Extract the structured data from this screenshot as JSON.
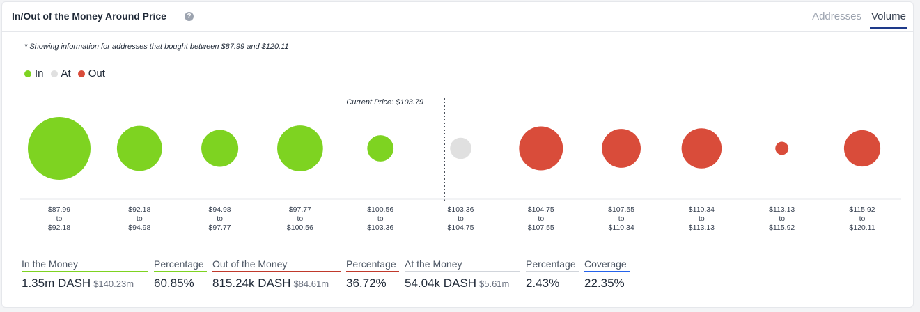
{
  "header": {
    "title": "In/Out of the Money Around Price",
    "tabs": [
      {
        "label": "Addresses",
        "active": false
      },
      {
        "label": "Volume",
        "active": true
      }
    ]
  },
  "note": "* Showing information for addresses that bought between $87.99 and $120.11",
  "legend": [
    {
      "label": "In",
      "color": "#7ed321"
    },
    {
      "label": "At",
      "color": "#e0e0e0"
    },
    {
      "label": "Out",
      "color": "#d94c3a"
    }
  ],
  "current_price_label": "Current Price: $103.79",
  "chart_data": {
    "type": "scatter",
    "title": "In/Out of the Money Around Price",
    "categories": [
      {
        "low": "$87.99",
        "high": "$92.18",
        "status": "in",
        "size": 1.0
      },
      {
        "low": "$92.18",
        "high": "$94.98",
        "status": "in",
        "size": 0.72
      },
      {
        "low": "$94.98",
        "high": "$97.77",
        "status": "in",
        "size": 0.59
      },
      {
        "low": "$97.77",
        "high": "$100.56",
        "status": "in",
        "size": 0.73
      },
      {
        "low": "$100.56",
        "high": "$103.36",
        "status": "in",
        "size": 0.42
      },
      {
        "low": "$103.36",
        "high": "$104.75",
        "status": "at",
        "size": 0.34
      },
      {
        "low": "$104.75",
        "high": "$107.55",
        "status": "out",
        "size": 0.7
      },
      {
        "low": "$107.55",
        "high": "$110.34",
        "status": "out",
        "size": 0.62
      },
      {
        "low": "$110.34",
        "high": "$113.13",
        "status": "out",
        "size": 0.64
      },
      {
        "low": "$113.13",
        "high": "$115.92",
        "status": "out",
        "size": 0.21
      },
      {
        "low": "$115.92",
        "high": "$120.11",
        "status": "out",
        "size": 0.58
      }
    ],
    "to_word": "to",
    "current_price": 103.79,
    "colors": {
      "in": "#7ed321",
      "at": "#e0e0e0",
      "out": "#d94c3a"
    }
  },
  "stats": [
    {
      "label": "In the Money",
      "value": "1.35m DASH",
      "sub": "$140.23m",
      "underline": "#7ed321"
    },
    {
      "label": "Percentage",
      "value": "60.85%",
      "sub": "",
      "underline": "#7ed321"
    },
    {
      "label": "Out of the Money",
      "value": "815.24k DASH",
      "sub": "$84.61m",
      "underline": "#c0392b"
    },
    {
      "label": "Percentage",
      "value": "36.72%",
      "sub": "",
      "underline": "#c0392b"
    },
    {
      "label": "At the Money",
      "value": "54.04k DASH",
      "sub": "$5.61m",
      "underline": "#d1d5db"
    },
    {
      "label": "Percentage",
      "value": "2.43%",
      "sub": "",
      "underline": "#d1d5db"
    },
    {
      "label": "Coverage",
      "value": "22.35%",
      "sub": "",
      "underline": "#2563eb"
    }
  ]
}
